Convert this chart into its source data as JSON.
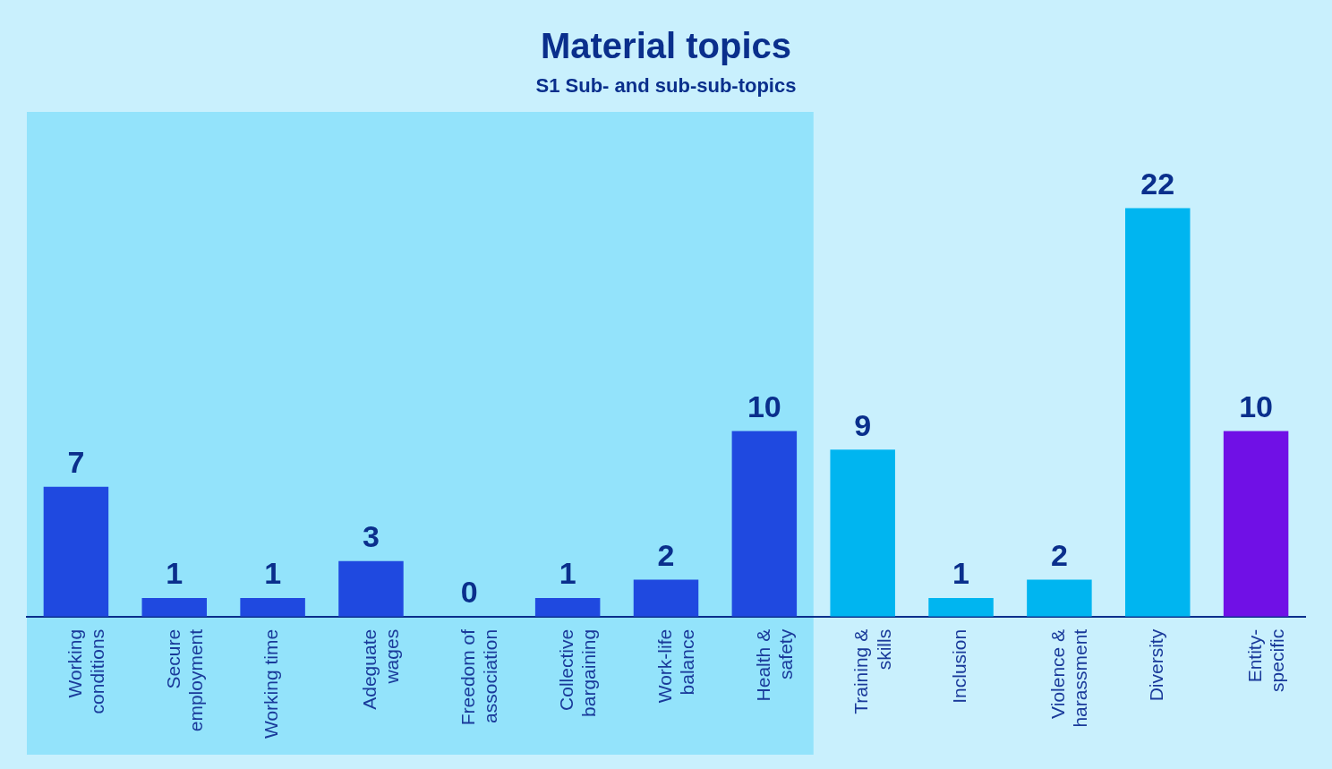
{
  "chart_data": {
    "type": "bar",
    "title": "Material topics",
    "subtitle": "S1 Sub- and sub-sub-topics",
    "categories": [
      "Working\nconditions",
      "Secure\nemployment",
      "Working time",
      "Adeguate\nwages",
      "Freedom of\nassociation",
      "Collective\nbargaining",
      "Work-life\nbalance",
      "Health &\nsafety",
      "Training &\nskills",
      "Inclusion",
      "Violence &\nharassment",
      "Diversity",
      "Entity-\nspecific"
    ],
    "values": [
      7,
      1,
      1,
      3,
      0,
      1,
      2,
      10,
      9,
      1,
      2,
      22,
      10
    ],
    "colors": [
      "#1f49e0",
      "#1f49e0",
      "#1f49e0",
      "#1f49e0",
      "#1f49e0",
      "#1f49e0",
      "#1f49e0",
      "#1f49e0",
      "#00b5f0",
      "#00b5f0",
      "#00b5f0",
      "#00b5f0",
      "#7010e6"
    ],
    "bands": [
      {
        "axis": "x",
        "from": "Working\nconditions",
        "to": "Health &\nsafety",
        "color": "#93e3fb"
      }
    ],
    "data_labels": true,
    "grid": false,
    "legend": false
  }
}
